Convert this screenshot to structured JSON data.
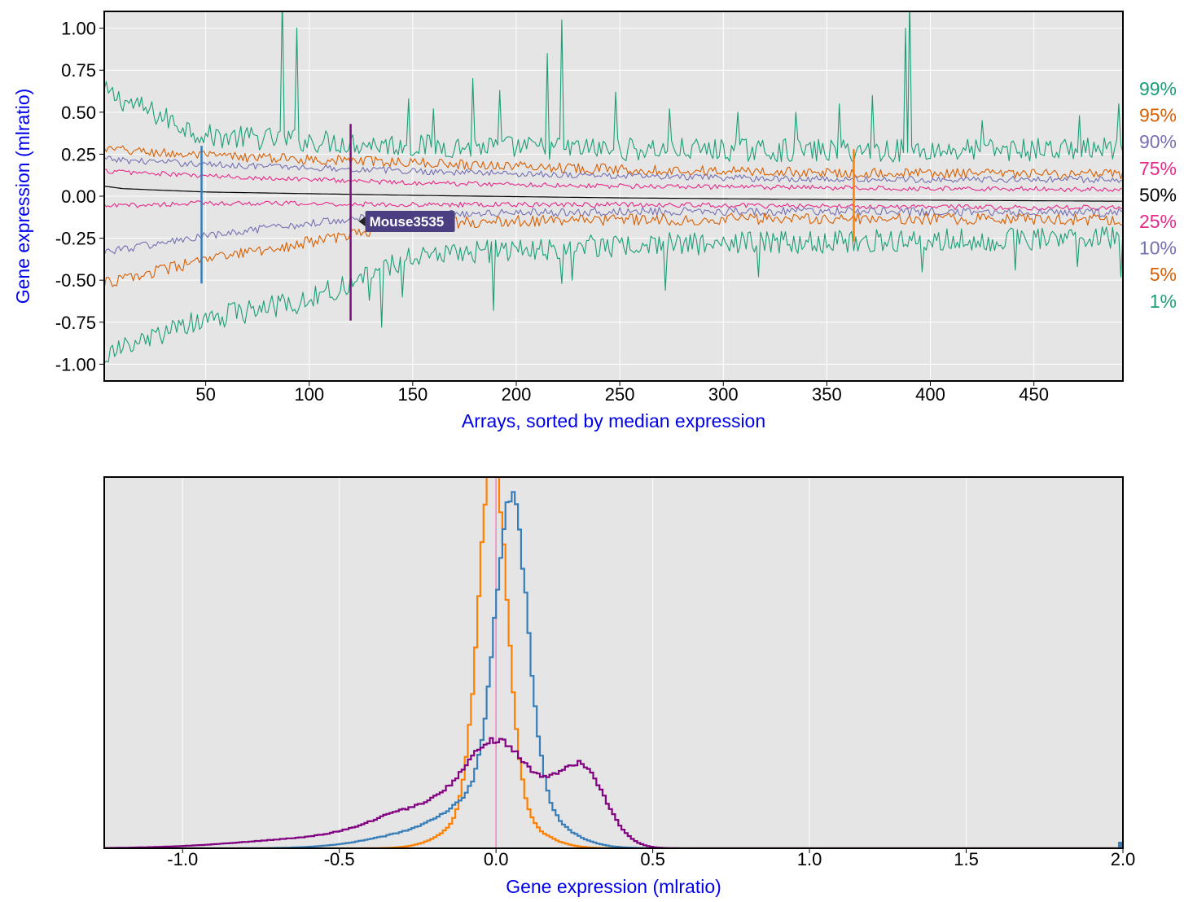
{
  "chart_data": [
    {
      "type": "line",
      "xlabel": "Arrays, sorted by median expression",
      "ylabel": "Gene expression (mlratio)",
      "xlim": [
        1,
        493
      ],
      "ylim": [
        -1.1,
        1.1
      ],
      "x_ticks": [
        50,
        100,
        150,
        200,
        250,
        300,
        350,
        400,
        450
      ],
      "x_tick_labels": [
        "50",
        "100",
        "150",
        "200",
        "250",
        "300",
        "350",
        "400",
        "450"
      ],
      "y_ticks": [
        1.0,
        0.75,
        0.5,
        0.25,
        0.0,
        -0.25,
        -0.5,
        -0.75,
        -1.0
      ],
      "y_tick_labels": [
        "1.00",
        "0.75",
        "0.50",
        "0.25",
        "0.00",
        "-0.25",
        "-0.50",
        "-0.75",
        "-1.00"
      ],
      "grid": true,
      "legend_placement": "right",
      "series": [
        {
          "name": "99%",
          "color": "#1b9e77",
          "anchors": [
            [
              1,
              0.62
            ],
            [
              50,
              0.36
            ],
            [
              150,
              0.3
            ],
            [
              250,
              0.28
            ],
            [
              350,
              0.27
            ],
            [
              493,
              0.28
            ]
          ],
          "noise": 0.07,
          "spikes": [
            [
              87,
              1.2
            ],
            [
              94,
              1.0
            ],
            [
              222,
              1.05
            ],
            [
              215,
              0.85
            ],
            [
              390,
              1.2
            ],
            [
              388,
              1.0
            ],
            [
              179,
              0.7
            ],
            [
              248,
              0.62
            ],
            [
              192,
              0.63
            ],
            [
              148,
              0.58
            ],
            [
              356,
              0.55
            ],
            [
              372,
              0.6
            ],
            [
              335,
              0.5
            ],
            [
              307,
              0.5
            ],
            [
              274,
              0.52
            ],
            [
              160,
              0.52
            ],
            [
              425,
              0.45
            ],
            [
              472,
              0.48
            ],
            [
              491,
              0.55
            ]
          ]
        },
        {
          "name": "95%",
          "color": "#d95f02",
          "anchors": [
            [
              1,
              0.28
            ],
            [
              50,
              0.24
            ],
            [
              150,
              0.2
            ],
            [
              250,
              0.16
            ],
            [
              350,
              0.14
            ],
            [
              493,
              0.13
            ]
          ],
          "noise": 0.03
        },
        {
          "name": "90%",
          "color": "#7570b3",
          "anchors": [
            [
              1,
              0.22
            ],
            [
              50,
              0.19
            ],
            [
              150,
              0.15
            ],
            [
              250,
              0.12
            ],
            [
              350,
              0.1
            ],
            [
              493,
              0.1
            ]
          ],
          "noise": 0.02
        },
        {
          "name": "75%",
          "color": "#e7298a",
          "anchors": [
            [
              1,
              0.15
            ],
            [
              50,
              0.12
            ],
            [
              150,
              0.08
            ],
            [
              250,
              0.06
            ],
            [
              350,
              0.05
            ],
            [
              493,
              0.04
            ]
          ],
          "noise": 0.015
        },
        {
          "name": "50%",
          "color": "#000000",
          "anchors": [
            [
              1,
              0.06
            ],
            [
              10,
              0.045
            ],
            [
              50,
              0.025
            ],
            [
              150,
              0.005
            ],
            [
              250,
              -0.01
            ],
            [
              350,
              -0.02
            ],
            [
              493,
              -0.03
            ]
          ],
          "noise": 0.0
        },
        {
          "name": "25%",
          "color": "#e7298a",
          "anchors": [
            [
              1,
              -0.06
            ],
            [
              50,
              -0.04
            ],
            [
              150,
              -0.05
            ],
            [
              250,
              -0.05
            ],
            [
              350,
              -0.06
            ],
            [
              493,
              -0.07
            ]
          ],
          "noise": 0.015
        },
        {
          "name": "10%",
          "color": "#7570b3",
          "anchors": [
            [
              1,
              -0.33
            ],
            [
              50,
              -0.24
            ],
            [
              120,
              -0.13
            ],
            [
              150,
              -0.11
            ],
            [
              250,
              -0.09
            ],
            [
              350,
              -0.09
            ],
            [
              493,
              -0.1
            ]
          ],
          "noise": 0.025
        },
        {
          "name": "5%",
          "color": "#d95f02",
          "anchors": [
            [
              1,
              -0.52
            ],
            [
              50,
              -0.38
            ],
            [
              120,
              -0.23
            ],
            [
              150,
              -0.16
            ],
            [
              250,
              -0.14
            ],
            [
              350,
              -0.13
            ],
            [
              493,
              -0.14
            ]
          ],
          "noise": 0.035
        },
        {
          "name": "1%",
          "color": "#1b9e77",
          "anchors": [
            [
              1,
              -0.95
            ],
            [
              50,
              -0.73
            ],
            [
              100,
              -0.62
            ],
            [
              150,
              -0.35
            ],
            [
              250,
              -0.29
            ],
            [
              350,
              -0.27
            ],
            [
              493,
              -0.25
            ]
          ],
          "noise": 0.07,
          "spikes": [
            [
              135,
              -0.78
            ],
            [
              189,
              -0.68
            ],
            [
              129,
              -0.62
            ],
            [
              145,
              -0.6
            ],
            [
              272,
              -0.56
            ],
            [
              227,
              -0.5
            ],
            [
              222,
              -0.52
            ],
            [
              317,
              -0.48
            ],
            [
              396,
              -0.45
            ],
            [
              441,
              -0.44
            ],
            [
              471,
              -0.42
            ],
            [
              492,
              -0.48
            ]
          ]
        }
      ],
      "highlights": [
        {
          "x": 48,
          "color": "#377eb8",
          "y_top": 0.3,
          "y_bottom": -0.52
        },
        {
          "x": 120,
          "color": "#7b0f7b",
          "y_top": 0.43,
          "y_bottom": -0.74
        },
        {
          "x": 363,
          "color": "#ff7f00",
          "y_top": 0.28,
          "y_bottom": -0.27
        }
      ],
      "tooltip": {
        "text": "Mouse3535",
        "x": 120,
        "y": -0.15
      }
    },
    {
      "type": "line",
      "xlabel": "Gene expression (mlratio)",
      "ylabel": "",
      "xlim": [
        -1.25,
        2.0
      ],
      "ylim": [
        0,
        1.0
      ],
      "x_ticks": [
        -1.0,
        -0.5,
        0.0,
        0.5,
        1.0,
        1.5,
        2.0
      ],
      "x_tick_labels": [
        "-1.0",
        "-0.5",
        "0.0",
        "0.5",
        "1.0",
        "1.5",
        "2.0"
      ],
      "grid": true,
      "reference_line": {
        "x": 0.0,
        "color": "#f781bf"
      },
      "series": [
        {
          "name": "",
          "color": "#ff7f00",
          "step": 0.01,
          "components": [
            [
              0.93,
              -0.01,
              0.045
            ],
            [
              0.12,
              -0.01,
              0.11
            ]
          ]
        },
        {
          "name": "",
          "color": "#377eb8",
          "step": 0.01,
          "components": [
            [
              0.78,
              0.05,
              0.05
            ],
            [
              0.16,
              0.03,
              0.13
            ],
            [
              0.045,
              -0.2,
              0.18
            ]
          ]
        },
        {
          "name": "",
          "color": "#800080",
          "step": 0.01,
          "components": [
            [
              0.27,
              0.01,
              0.11
            ],
            [
              0.21,
              0.27,
              0.08
            ],
            [
              0.08,
              -0.25,
              0.14
            ],
            [
              0.03,
              -0.5,
              0.28
            ]
          ]
        }
      ]
    }
  ],
  "right_labels": [
    {
      "text": "99%",
      "color": "#1b9e77"
    },
    {
      "text": "95%",
      "color": "#d95f02"
    },
    {
      "text": "90%",
      "color": "#7570b3"
    },
    {
      "text": "75%",
      "color": "#e7298a"
    },
    {
      "text": "50%",
      "color": "#000000"
    },
    {
      "text": "25%",
      "color": "#e7298a"
    },
    {
      "text": "10%",
      "color": "#7570b3"
    },
    {
      "text": "5%",
      "color": "#d95f02"
    },
    {
      "text": "1%",
      "color": "#1b9e77"
    }
  ],
  "colors": {
    "plot_bg": "#e5e5e5",
    "grid": "#ffffff",
    "frame": "#000000",
    "axis_title": "#0000ee"
  }
}
